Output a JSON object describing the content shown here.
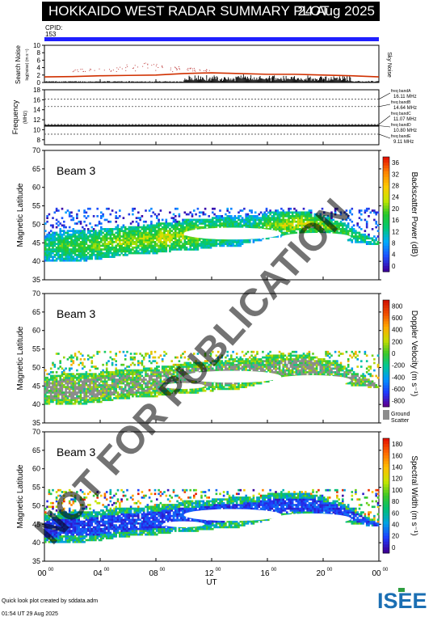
{
  "header": {
    "title": "HOKKAIDO WEST RADAR SUMMARY PLOT",
    "date": "24 Aug 2025",
    "cpid_label": "CPID:",
    "cpid_value": "153"
  },
  "panels": {
    "noise": {
      "ylabel_main": "Search Noise",
      "ylabel_sub": "log(noise) (m s⁻¹)",
      "right_label": "Sky Noise",
      "yticks": [
        "0",
        "2",
        "4",
        "6",
        "8",
        "10"
      ]
    },
    "frequency": {
      "ylabel_main": "Frequency",
      "ylabel_sub": "(MHz)",
      "yticks": [
        "8",
        "10",
        "12",
        "14",
        "16",
        "18"
      ],
      "bands": [
        {
          "name": "freq bandA",
          "value": "16.11 MHz"
        },
        {
          "name": "freq bandB",
          "value": "14.64 MHz"
        },
        {
          "name": "freq bandC",
          "value": "11.07 MHz"
        },
        {
          "name": "freq bandD",
          "value": "10.80 MHz"
        },
        {
          "name": "freq bandE",
          "value": "9.11 MHz"
        }
      ]
    },
    "power": {
      "beam": "Beam  3",
      "ylabel": "Magnetic Latitude",
      "cbar_label": "Backscatter Power (dB)",
      "cbar_ticks": [
        "36",
        "32",
        "28",
        "24",
        "20",
        "16",
        "12",
        "8",
        "4",
        "0"
      ]
    },
    "velocity": {
      "beam": "Beam  3",
      "ylabel": "Magnetic Latitude",
      "cbar_label": "Doppler Velocity (m s⁻¹)",
      "cbar_ticks": [
        "800",
        "600",
        "400",
        "200",
        "0",
        "-200",
        "-400",
        "-600",
        "-800"
      ],
      "ground_label_1": "Ground",
      "ground_label_2": "Scatter"
    },
    "width": {
      "beam": "Beam  3",
      "ylabel": "Magnetic Latitude",
      "cbar_label": "Spectral Width (m s⁻¹)",
      "cbar_ticks": [
        "180",
        "160",
        "140",
        "120",
        "100",
        "80",
        "60",
        "40",
        "20",
        "0"
      ]
    },
    "lat_ticks": [
      "35",
      "40",
      "45",
      "50",
      "55",
      "60",
      "65",
      "70"
    ]
  },
  "xaxis": {
    "label": "UT",
    "ticks": [
      {
        "h": "00",
        "m": "00"
      },
      {
        "h": "04",
        "m": "00"
      },
      {
        "h": "08",
        "m": "00"
      },
      {
        "h": "12",
        "m": "00"
      },
      {
        "h": "16",
        "m": "00"
      },
      {
        "h": "20",
        "m": "00"
      },
      {
        "h": "00",
        "m": "00"
      }
    ]
  },
  "watermark": "NOT FOR PUBLICATION",
  "footer": {
    "credit": "Quick look plot created by sddata.adm",
    "created": "01:54 UT 29 Aug 2025",
    "logo_text": "ISEE"
  },
  "colors": {
    "cpid_bar": "#2020ff",
    "sky_noise": "#d03000",
    "watermark": "#b8b8b8"
  },
  "chart_data": [
    {
      "type": "line",
      "title": "Sky Noise",
      "xlabel": "UT",
      "ylabel": "Search Noise",
      "xlim": [
        0,
        24
      ],
      "ylim": [
        0,
        10
      ],
      "series": [
        {
          "name": "Sky Noise",
          "x": [
            0,
            2,
            4,
            6,
            8,
            10,
            12,
            14,
            16,
            18,
            20,
            22,
            24
          ],
          "y": [
            1.5,
            1.6,
            1.8,
            1.9,
            2.0,
            2.4,
            2.6,
            2.4,
            2.2,
            2.2,
            2.0,
            1.8,
            1.5
          ]
        }
      ]
    },
    {
      "type": "line",
      "title": "Frequency",
      "xlabel": "UT",
      "ylabel": "Frequency",
      "xlim": [
        0,
        24
      ],
      "ylim": [
        7,
        18
      ],
      "series": [
        {
          "name": "freq bandD",
          "x": [
            0,
            6,
            12,
            18,
            24
          ],
          "y": [
            10.8,
            10.8,
            10.8,
            10.8,
            10.8
          ]
        }
      ]
    },
    {
      "type": "heatmap",
      "title": "Backscatter Power (dB)",
      "xlabel": "UT",
      "ylabel": "Magnetic Latitude",
      "xlim": [
        0,
        24
      ],
      "ylim": [
        35,
        70
      ],
      "clim": [
        0,
        36
      ],
      "x": [
        0,
        1,
        2,
        3,
        4,
        5,
        6,
        7,
        8,
        9,
        10,
        11,
        12,
        13,
        14,
        15,
        16,
        17,
        18,
        19,
        20,
        21,
        22,
        23
      ],
      "band_lower_lat": [
        40,
        40,
        40,
        40,
        40.5,
        41,
        41.5,
        42,
        42,
        42.5,
        43,
        43,
        43.5,
        44,
        44,
        45,
        46,
        46.5,
        47,
        47,
        46.5,
        46,
        45,
        44.5
      ],
      "band_upper_lat": [
        47,
        48,
        48,
        48,
        48.5,
        49,
        49,
        49.5,
        50,
        50,
        51,
        51,
        51.5,
        52,
        52,
        52,
        53,
        53,
        53,
        53,
        52,
        51,
        49,
        47
      ],
      "peak_power_db": [
        16,
        18,
        18,
        20,
        20,
        22,
        22,
        22,
        24,
        22,
        22,
        20,
        20,
        18,
        16,
        18,
        20,
        24,
        24,
        22,
        20,
        18,
        16,
        16
      ]
    },
    {
      "type": "heatmap",
      "title": "Doppler Velocity (m s⁻¹)",
      "xlabel": "UT",
      "ylabel": "Magnetic Latitude",
      "xlim": [
        0,
        24
      ],
      "ylim": [
        35,
        70
      ],
      "clim": [
        -800,
        800
      ],
      "x": [
        0,
        1,
        2,
        3,
        4,
        5,
        6,
        7,
        8,
        9,
        10,
        11,
        12,
        13,
        14,
        15,
        16,
        17,
        18,
        19,
        20,
        21,
        22,
        23
      ],
      "band_lower_lat": [
        40,
        40,
        40,
        40,
        40.5,
        41,
        41.5,
        42,
        42,
        42.5,
        43,
        43,
        43.5,
        44,
        44,
        45,
        46,
        46.5,
        47,
        47,
        46.5,
        46,
        45,
        44.5
      ],
      "band_upper_lat": [
        47,
        48,
        48,
        48,
        48.5,
        49,
        49,
        49.5,
        50,
        50,
        51,
        51,
        51.5,
        52,
        52,
        52,
        53,
        53,
        53,
        53,
        52,
        51,
        49,
        47
      ],
      "mean_velocity": [
        0,
        0,
        0,
        0,
        0,
        0,
        0,
        0,
        0,
        0,
        0,
        0,
        0,
        0,
        0,
        0,
        0,
        0,
        0,
        0,
        0,
        0,
        0,
        0
      ]
    },
    {
      "type": "heatmap",
      "title": "Spectral Width (m s⁻¹)",
      "xlabel": "UT",
      "ylabel": "Magnetic Latitude",
      "xlim": [
        0,
        24
      ],
      "ylim": [
        35,
        70
      ],
      "clim": [
        0,
        180
      ],
      "x": [
        0,
        1,
        2,
        3,
        4,
        5,
        6,
        7,
        8,
        9,
        10,
        11,
        12,
        13,
        14,
        15,
        16,
        17,
        18,
        19,
        20,
        21,
        22,
        23
      ],
      "band_lower_lat": [
        40,
        40,
        40,
        40,
        40.5,
        41,
        41.5,
        42,
        42,
        42.5,
        43,
        43,
        43.5,
        44,
        44,
        45,
        46,
        46.5,
        47,
        47,
        46.5,
        46,
        45,
        44.5
      ],
      "band_upper_lat": [
        47,
        48,
        48,
        48,
        48.5,
        49,
        49,
        49.5,
        50,
        50,
        51,
        51,
        51.5,
        52,
        52,
        52,
        53,
        53,
        53,
        53,
        52,
        51,
        49,
        47
      ],
      "typical_width": [
        20,
        20,
        20,
        20,
        20,
        20,
        20,
        20,
        20,
        20,
        20,
        20,
        20,
        20,
        20,
        20,
        20,
        20,
        20,
        20,
        20,
        20,
        20,
        20
      ]
    }
  ]
}
